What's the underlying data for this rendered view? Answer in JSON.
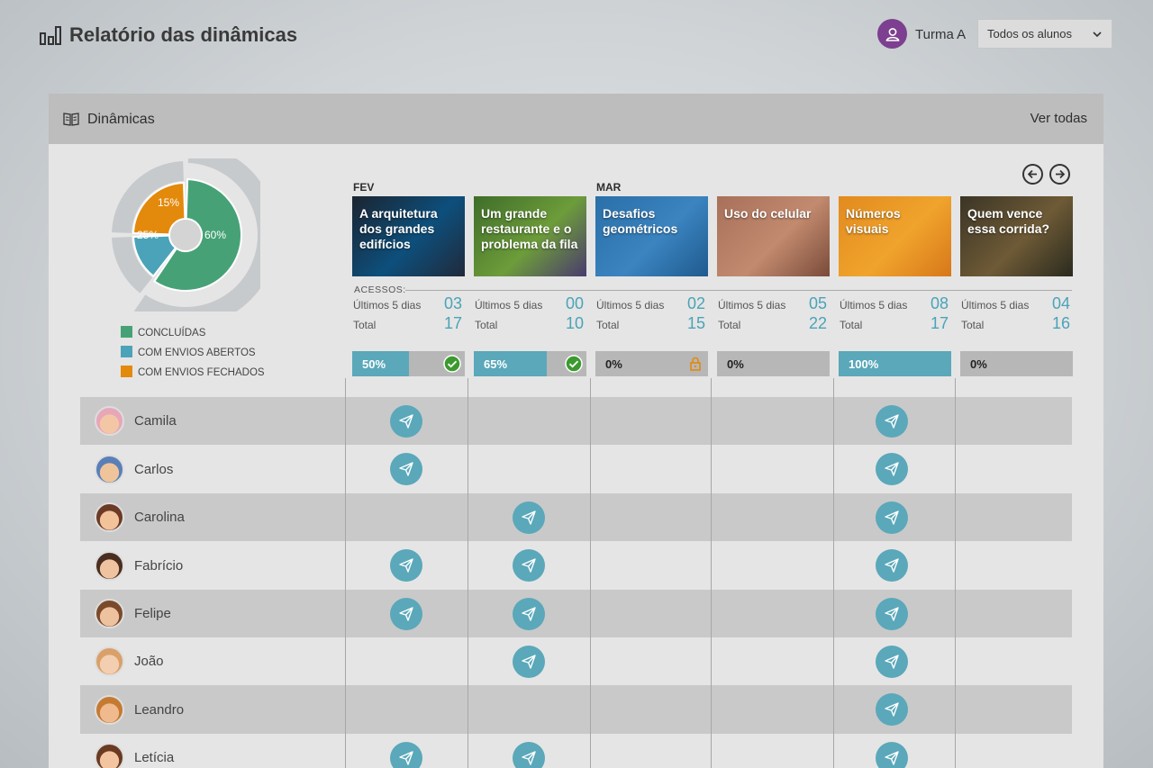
{
  "header": {
    "title": "Relatório das dinâmicas",
    "class_name": "Turma A",
    "student_filter": "Todos os alunos"
  },
  "card": {
    "title": "Dinâmicas",
    "see_all": "Ver todas",
    "access_label": "ACESSOS:"
  },
  "donut": {
    "segments": [
      {
        "label": "60%",
        "value": 60,
        "color": "#46a276"
      },
      {
        "label": "15%",
        "value": 15,
        "color": "#4aa3b8"
      },
      {
        "label": "25%",
        "value": 25,
        "color": "#e3890b"
      }
    ]
  },
  "legend": [
    {
      "label": "CONCLUÍDAS",
      "color": "#46a276"
    },
    {
      "label": "COM ENVIOS ABERTOS",
      "color": "#4aa3b8"
    },
    {
      "label": "COM ENVIOS FECHADOS",
      "color": "#e3890b"
    }
  ],
  "months": [
    {
      "label": "FEV"
    },
    {
      "label": "MAR"
    }
  ],
  "stats_labels": {
    "recent": "Últimos 5 dias",
    "total": "Total"
  },
  "activities": [
    {
      "title": "A arquitetura dos grandes edifícios",
      "recent": "03",
      "total": "17",
      "progress_label": "50%",
      "progress": 50,
      "status": "check",
      "thumb": [
        "#1b2430",
        "#0d4f7c",
        "#202a3a"
      ]
    },
    {
      "title": "Um grande restaurante e o problema da fila",
      "recent": "00",
      "total": "10",
      "progress_label": "65%",
      "progress": 65,
      "status": "check",
      "thumb": [
        "#3e6d2a",
        "#6d9c3a",
        "#4a3b6e"
      ]
    },
    {
      "title": "Desafios geométricos",
      "recent": "02",
      "total": "15",
      "progress_label": "0%",
      "progress": 0,
      "status": "lock",
      "thumb": [
        "#2a6fa8",
        "#3b84c0",
        "#1f5a8e"
      ]
    },
    {
      "title": "Uso do celular",
      "recent": "05",
      "total": "22",
      "progress_label": "0%",
      "progress": 0,
      "status": "none",
      "thumb": [
        "#a8705a",
        "#c28a6e",
        "#7a4b3a"
      ]
    },
    {
      "title": "Números visuais",
      "recent": "08",
      "total": "17",
      "progress_label": "100%",
      "progress": 100,
      "status": "none",
      "thumb": [
        "#e28a1f",
        "#f0a42c",
        "#d7771a"
      ]
    },
    {
      "title": "Quem vence essa corrida?",
      "recent": "04",
      "total": "16",
      "progress_label": "0%",
      "progress": 0,
      "status": "none",
      "thumb": [
        "#3b3526",
        "#6e5a36",
        "#2a2a1e"
      ]
    }
  ],
  "students": [
    {
      "name": "Camila",
      "sent": [
        1,
        0,
        0,
        0,
        1,
        0
      ],
      "avatar": [
        "#f3c7a6",
        "#e8a7b8"
      ]
    },
    {
      "name": "Carlos",
      "sent": [
        1,
        0,
        0,
        0,
        1,
        0
      ],
      "avatar": [
        "#f0c49a",
        "#5a7fb8"
      ]
    },
    {
      "name": "Carolina",
      "sent": [
        0,
        1,
        0,
        0,
        1,
        0
      ],
      "avatar": [
        "#f2c29b",
        "#6b3b26"
      ]
    },
    {
      "name": "Fabrício",
      "sent": [
        1,
        1,
        0,
        0,
        1,
        0
      ],
      "avatar": [
        "#f0c3a0",
        "#4a2f20"
      ]
    },
    {
      "name": "Felipe",
      "sent": [
        1,
        1,
        0,
        0,
        1,
        0
      ],
      "avatar": [
        "#eec29e",
        "#7a4a2a"
      ]
    },
    {
      "name": "João",
      "sent": [
        0,
        1,
        0,
        0,
        1,
        0
      ],
      "avatar": [
        "#f3ceb0",
        "#d9a06a"
      ]
    },
    {
      "name": "Leandro",
      "sent": [
        0,
        0,
        0,
        0,
        1,
        0
      ],
      "avatar": [
        "#f0b98e",
        "#c57a32"
      ]
    },
    {
      "name": "Letícia",
      "sent": [
        1,
        1,
        0,
        0,
        1,
        0
      ],
      "avatar": [
        "#f2c4a0",
        "#6a3a22"
      ]
    }
  ]
}
